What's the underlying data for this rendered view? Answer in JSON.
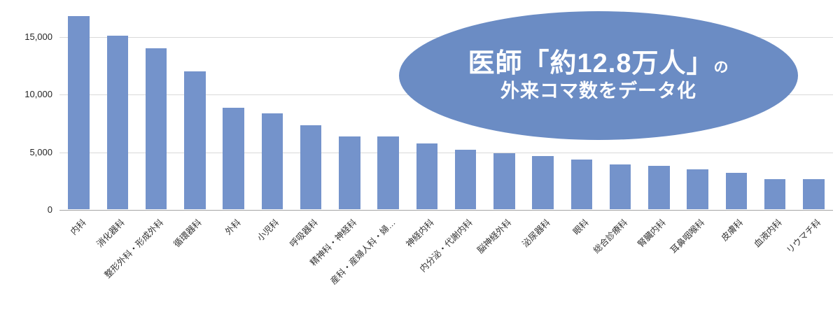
{
  "chart_data": {
    "type": "bar",
    "title": "",
    "xlabel": "",
    "ylabel": "",
    "ylim": [
      0,
      17500
    ],
    "grid": true,
    "legend": false,
    "bar_color": "#7493CB",
    "categories": [
      "内科",
      "消化器科",
      "整形外科・形成外科",
      "循環器科",
      "外科",
      "小児科",
      "呼吸器科",
      "精神科・神経科",
      "産科・産婦人科・婦…",
      "神経内科",
      "内分泌・代謝内科",
      "脳神経外科",
      "泌尿器科",
      "眼科",
      "総合診療科",
      "腎臓内科",
      "耳鼻咽喉科",
      "皮膚科",
      "血液内科",
      "リウマチ科"
    ],
    "values": [
      16800,
      15100,
      13950,
      11950,
      8800,
      8350,
      7300,
      6300,
      6300,
      5700,
      5150,
      4850,
      4600,
      4300,
      3900,
      3750,
      3450,
      3150,
      2600,
      2600
    ],
    "y_ticks": [
      {
        "value": 0,
        "label": "0"
      },
      {
        "value": 5000,
        "label": "5,000"
      },
      {
        "value": 10000,
        "label": "10,000"
      },
      {
        "value": 15000,
        "label": "15,000"
      }
    ]
  },
  "overlay": {
    "line1_main": "医師「約12.8万人」",
    "line1_suffix": "の",
    "line2": "外来コマ数をデータ化",
    "bg_color": "#6B8CC4",
    "text_color": "#FFFFFF"
  }
}
